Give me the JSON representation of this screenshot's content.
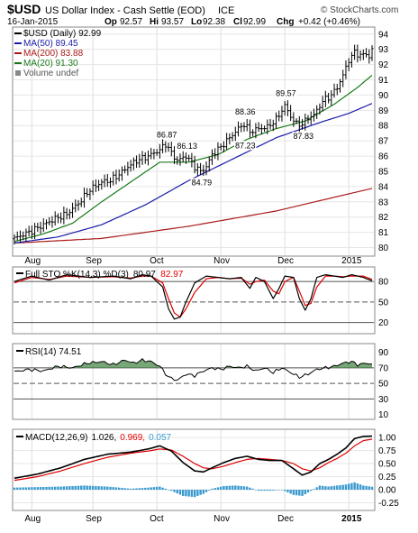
{
  "header": {
    "symbol": "$USD",
    "name": "US Dollar Index - Cash Settle (EOD)",
    "exchange": "ICE",
    "credit": "© StockCharts.com",
    "date": "16-Jan-2015",
    "quote": {
      "op": "92.57",
      "hi": "93.57",
      "lo": "92.38",
      "cl": "92.99",
      "chg": "+0.42 (+0.46%)"
    },
    "labels": {
      "op": "Op",
      "hi": "Hi",
      "lo": "Lo",
      "cl": "Cl",
      "chg": "Chg"
    }
  },
  "colors": {
    "price": "#000000",
    "ma50": "#1a1aaa",
    "ma200": "#aa1a1a",
    "ma20": "#1a7a1a",
    "sto_d": "#e00000",
    "macd_sig": "#e00000",
    "hist": "#3a9ad0",
    "rsi_fill": "#4a8a4a"
  },
  "chart_data": [
    {
      "type": "line",
      "panel": "price",
      "legend_placement": "top-left",
      "legend": [
        {
          "key": "price",
          "text": "$USD (Daily) 92.99",
          "color": "#000000"
        },
        {
          "key": "ma50",
          "text": "MA(50) 89.45",
          "color": "#1a1aaa"
        },
        {
          "key": "ma200",
          "text": "MA(200) 83.88",
          "color": "#aa1a1a"
        },
        {
          "key": "ma20",
          "text": "MA(20) 91.30",
          "color": "#1a7a1a"
        },
        {
          "key": "volume",
          "text": "Volume undef",
          "color": "#555555"
        }
      ],
      "yticks": [
        80,
        81,
        82,
        83,
        84,
        85,
        86,
        87,
        88,
        89,
        90,
        91,
        92,
        93,
        94
      ],
      "ylim": [
        79.5,
        94.4
      ],
      "x_labels": [
        {
          "t": 6,
          "label": "Aug"
        },
        {
          "t": 27,
          "label": "Sep"
        },
        {
          "t": 49,
          "label": "Oct"
        },
        {
          "t": 71,
          "label": "Nov"
        },
        {
          "t": 93,
          "label": "Dec"
        },
        {
          "t": 115,
          "label": "2015"
        }
      ],
      "annotations": [
        {
          "t": 52,
          "value": 86.87,
          "label": "86.87",
          "pos": "above"
        },
        {
          "t": 59,
          "value": 86.13,
          "label": "86.13",
          "pos": "above"
        },
        {
          "t": 64,
          "value": 84.79,
          "label": "84.79",
          "pos": "below"
        },
        {
          "t": 79,
          "value": 88.36,
          "label": "88.36",
          "pos": "above"
        },
        {
          "t": 79,
          "value": 87.23,
          "label": "87.23",
          "pos": "below"
        },
        {
          "t": 93,
          "value": 89.57,
          "label": "89.57",
          "pos": "above"
        },
        {
          "t": 99,
          "value": 87.83,
          "label": "87.83",
          "pos": "below"
        }
      ],
      "price_anchors": [
        [
          0,
          80.6
        ],
        [
          6,
          81.1
        ],
        [
          10,
          81.5
        ],
        [
          14,
          81.9
        ],
        [
          18,
          82.2
        ],
        [
          22,
          82.9
        ],
        [
          26,
          83.8
        ],
        [
          30,
          84.3
        ],
        [
          33,
          84.4
        ],
        [
          36,
          84.8
        ],
        [
          39,
          85.3
        ],
        [
          42,
          85.7
        ],
        [
          46,
          86.0
        ],
        [
          50,
          86.4
        ],
        [
          52,
          86.8
        ],
        [
          54,
          86.2
        ],
        [
          56,
          85.7
        ],
        [
          59,
          86.0
        ],
        [
          62,
          85.3
        ],
        [
          64,
          85.0
        ],
        [
          66,
          85.3
        ],
        [
          68,
          86.1
        ],
        [
          71,
          86.6
        ],
        [
          74,
          87.2
        ],
        [
          77,
          87.8
        ],
        [
          79,
          88.1
        ],
        [
          81,
          87.6
        ],
        [
          84,
          87.8
        ],
        [
          87,
          87.9
        ],
        [
          90,
          88.4
        ],
        [
          93,
          89.3
        ],
        [
          95,
          88.6
        ],
        [
          97,
          88.1
        ],
        [
          99,
          88.1
        ],
        [
          101,
          88.5
        ],
        [
          103,
          88.7
        ],
        [
          106,
          89.6
        ],
        [
          109,
          90.0
        ],
        [
          111,
          90.5
        ],
        [
          113,
          91.3
        ],
        [
          115,
          92.3
        ],
        [
          117,
          92.8
        ],
        [
          119,
          92.6
        ],
        [
          121,
          92.7
        ],
        [
          122,
          92.5
        ],
        [
          123,
          93.0
        ]
      ],
      "ma50_anchors": [
        [
          0,
          80.3
        ],
        [
          15,
          80.7
        ],
        [
          30,
          81.5
        ],
        [
          45,
          82.8
        ],
        [
          60,
          84.4
        ],
        [
          75,
          85.8
        ],
        [
          90,
          87.2
        ],
        [
          105,
          88.2
        ],
        [
          115,
          88.8
        ],
        [
          123,
          89.45
        ]
      ],
      "ma200_anchors": [
        [
          0,
          80.3
        ],
        [
          30,
          80.6
        ],
        [
          60,
          81.4
        ],
        [
          90,
          82.4
        ],
        [
          110,
          83.3
        ],
        [
          123,
          83.88
        ]
      ],
      "ma20_anchors": [
        [
          0,
          80.4
        ],
        [
          10,
          80.9
        ],
        [
          20,
          81.6
        ],
        [
          30,
          83.0
        ],
        [
          40,
          84.3
        ],
        [
          50,
          85.6
        ],
        [
          60,
          85.6
        ],
        [
          70,
          86.1
        ],
        [
          80,
          87.1
        ],
        [
          90,
          87.8
        ],
        [
          100,
          88.3
        ],
        [
          110,
          89.4
        ],
        [
          118,
          90.5
        ],
        [
          123,
          91.3
        ]
      ]
    },
    {
      "type": "line",
      "panel": "sto",
      "legend": [
        {
          "key": "label",
          "text": "Full STO %K(14,3) %D(3)",
          "color": "#000000"
        },
        {
          "key": "k",
          "text": "80.97",
          "color": "#000000"
        },
        {
          "key": "d",
          "text": "82.97",
          "color": "#e00000"
        }
      ],
      "yticks": [
        20,
        50,
        80
      ],
      "ylim": [
        5,
        100
      ],
      "k_anchors": [
        [
          0,
          80
        ],
        [
          6,
          88
        ],
        [
          12,
          82
        ],
        [
          18,
          90
        ],
        [
          26,
          86
        ],
        [
          34,
          88
        ],
        [
          40,
          84
        ],
        [
          44,
          90
        ],
        [
          47,
          88
        ],
        [
          51,
          72
        ],
        [
          53,
          40
        ],
        [
          55,
          25
        ],
        [
          57,
          28
        ],
        [
          59,
          50
        ],
        [
          62,
          78
        ],
        [
          66,
          88
        ],
        [
          70,
          86
        ],
        [
          74,
          84
        ],
        [
          78,
          86
        ],
        [
          81,
          70
        ],
        [
          83,
          86
        ],
        [
          86,
          80
        ],
        [
          89,
          55
        ],
        [
          91,
          70
        ],
        [
          93,
          88
        ],
        [
          96,
          86
        ],
        [
          98,
          55
        ],
        [
          100,
          38
        ],
        [
          102,
          55
        ],
        [
          104,
          86
        ],
        [
          107,
          90
        ],
        [
          110,
          88
        ],
        [
          113,
          86
        ],
        [
          116,
          90
        ],
        [
          120,
          86
        ],
        [
          123,
          81
        ]
      ],
      "d_anchors": [
        [
          0,
          78
        ],
        [
          6,
          86
        ],
        [
          12,
          83
        ],
        [
          18,
          88
        ],
        [
          26,
          86
        ],
        [
          34,
          87
        ],
        [
          40,
          85
        ],
        [
          44,
          88
        ],
        [
          47,
          88
        ],
        [
          51,
          78
        ],
        [
          53,
          55
        ],
        [
          55,
          34
        ],
        [
          57,
          28
        ],
        [
          59,
          40
        ],
        [
          62,
          64
        ],
        [
          66,
          84
        ],
        [
          70,
          86
        ],
        [
          74,
          84
        ],
        [
          78,
          85
        ],
        [
          81,
          76
        ],
        [
          83,
          80
        ],
        [
          86,
          82
        ],
        [
          89,
          66
        ],
        [
          91,
          62
        ],
        [
          93,
          80
        ],
        [
          96,
          86
        ],
        [
          98,
          66
        ],
        [
          100,
          45
        ],
        [
          102,
          48
        ],
        [
          104,
          72
        ],
        [
          107,
          88
        ],
        [
          110,
          88
        ],
        [
          113,
          87
        ],
        [
          116,
          88
        ],
        [
          120,
          88
        ],
        [
          123,
          83
        ]
      ]
    },
    {
      "type": "area",
      "panel": "rsi",
      "legend": [
        {
          "key": "rsi",
          "text": "RSI(14) 74.51",
          "color": "#000000"
        }
      ],
      "yticks": [
        10,
        30,
        50,
        70,
        90
      ],
      "ylim": [
        5,
        100
      ],
      "rsi_anchors": [
        [
          0,
          65
        ],
        [
          5,
          68
        ],
        [
          10,
          66
        ],
        [
          15,
          72
        ],
        [
          20,
          70
        ],
        [
          25,
          76
        ],
        [
          30,
          78
        ],
        [
          34,
          74
        ],
        [
          38,
          80
        ],
        [
          41,
          76
        ],
        [
          44,
          80
        ],
        [
          47,
          78
        ],
        [
          50,
          72
        ],
        [
          53,
          58
        ],
        [
          56,
          54
        ],
        [
          59,
          62
        ],
        [
          62,
          60
        ],
        [
          65,
          66
        ],
        [
          68,
          70
        ],
        [
          71,
          68
        ],
        [
          74,
          72
        ],
        [
          77,
          70
        ],
        [
          80,
          72
        ],
        [
          83,
          66
        ],
        [
          86,
          70
        ],
        [
          89,
          64
        ],
        [
          92,
          70
        ],
        [
          95,
          64
        ],
        [
          98,
          58
        ],
        [
          101,
          62
        ],
        [
          104,
          68
        ],
        [
          107,
          70
        ],
        [
          110,
          72
        ],
        [
          113,
          76
        ],
        [
          116,
          78
        ],
        [
          118,
          74
        ],
        [
          121,
          76
        ],
        [
          123,
          74.5
        ]
      ]
    },
    {
      "type": "line",
      "panel": "macd",
      "legend": [
        {
          "key": "label",
          "text": "MACD(12,26,9)",
          "color": "#000000"
        },
        {
          "key": "macd",
          "text": "1.026,",
          "color": "#000000"
        },
        {
          "key": "signal",
          "text": "0.969,",
          "color": "#e00000"
        },
        {
          "key": "hist",
          "text": "0.057",
          "color": "#3a9ad0"
        }
      ],
      "yticks": [
        -0.25,
        0.0,
        0.25,
        0.5,
        0.75,
        1.0
      ],
      "ytick_labels": [
        "-0.25",
        "0.00",
        "0.25",
        "0.50",
        "0.75",
        "1.00"
      ],
      "ylim": [
        -0.38,
        1.14
      ],
      "macd_anchors": [
        [
          0,
          0.22
        ],
        [
          8,
          0.3
        ],
        [
          16,
          0.42
        ],
        [
          24,
          0.58
        ],
        [
          32,
          0.68
        ],
        [
          40,
          0.72
        ],
        [
          46,
          0.78
        ],
        [
          50,
          0.84
        ],
        [
          54,
          0.74
        ],
        [
          58,
          0.52
        ],
        [
          62,
          0.36
        ],
        [
          65,
          0.34
        ],
        [
          68,
          0.42
        ],
        [
          72,
          0.52
        ],
        [
          76,
          0.6
        ],
        [
          80,
          0.64
        ],
        [
          84,
          0.58
        ],
        [
          88,
          0.56
        ],
        [
          92,
          0.56
        ],
        [
          96,
          0.4
        ],
        [
          99,
          0.28
        ],
        [
          102,
          0.34
        ],
        [
          105,
          0.5
        ],
        [
          108,
          0.58
        ],
        [
          111,
          0.68
        ],
        [
          114,
          0.8
        ],
        [
          117,
          0.98
        ],
        [
          120,
          1.02
        ],
        [
          123,
          1.026
        ]
      ],
      "signal_anchors": [
        [
          0,
          0.18
        ],
        [
          8,
          0.25
        ],
        [
          16,
          0.36
        ],
        [
          24,
          0.5
        ],
        [
          32,
          0.62
        ],
        [
          40,
          0.7
        ],
        [
          46,
          0.74
        ],
        [
          50,
          0.78
        ],
        [
          54,
          0.76
        ],
        [
          58,
          0.64
        ],
        [
          62,
          0.5
        ],
        [
          65,
          0.42
        ],
        [
          68,
          0.4
        ],
        [
          72,
          0.45
        ],
        [
          76,
          0.52
        ],
        [
          80,
          0.58
        ],
        [
          84,
          0.6
        ],
        [
          88,
          0.58
        ],
        [
          92,
          0.56
        ],
        [
          96,
          0.5
        ],
        [
          99,
          0.4
        ],
        [
          102,
          0.36
        ],
        [
          105,
          0.42
        ],
        [
          108,
          0.52
        ],
        [
          111,
          0.6
        ],
        [
          114,
          0.7
        ],
        [
          117,
          0.84
        ],
        [
          120,
          0.94
        ],
        [
          123,
          0.969
        ]
      ]
    }
  ]
}
